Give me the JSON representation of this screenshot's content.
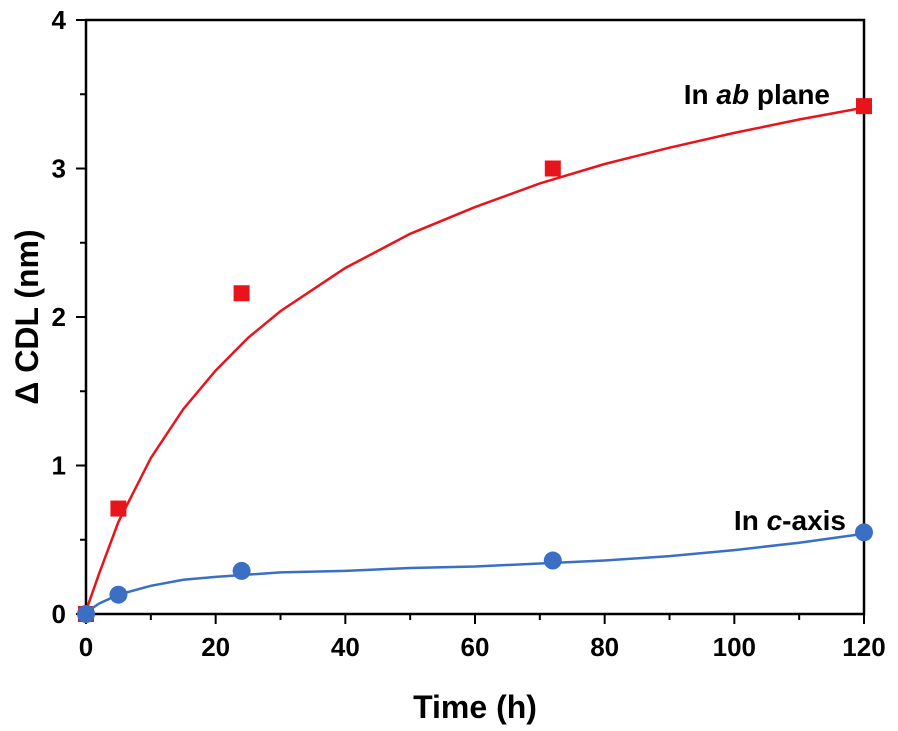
{
  "chart_data": {
    "type": "scatter",
    "xlabel": "Time (h)",
    "ylabel": "Δ CDL (nm)",
    "xlim": [
      0,
      120
    ],
    "ylim": [
      0,
      4
    ],
    "x_ticks": [
      "0",
      "20",
      "40",
      "60",
      "80",
      "100",
      "120"
    ],
    "y_ticks": [
      "0",
      "1",
      "2",
      "3",
      "4"
    ],
    "grid": false,
    "series": [
      {
        "name_prefix": "In ",
        "name_italic": "ab",
        "name_suffix": " plane",
        "marker": "square",
        "color": "#e8141c",
        "x": [
          0,
          5,
          24,
          72,
          120
        ],
        "y": [
          0.0,
          0.71,
          2.16,
          3.0,
          3.42
        ],
        "fit": [
          [
            0,
            0.02
          ],
          [
            2,
            0.27
          ],
          [
            5,
            0.62
          ],
          [
            10,
            1.05
          ],
          [
            15,
            1.38
          ],
          [
            20,
            1.64
          ],
          [
            25,
            1.86
          ],
          [
            30,
            2.04
          ],
          [
            40,
            2.33
          ],
          [
            50,
            2.56
          ],
          [
            60,
            2.74
          ],
          [
            70,
            2.9
          ],
          [
            80,
            3.03
          ],
          [
            90,
            3.14
          ],
          [
            100,
            3.24
          ],
          [
            110,
            3.33
          ],
          [
            120,
            3.41
          ]
        ]
      },
      {
        "name_prefix": "In ",
        "name_italic": "c",
        "name_suffix": "-axis",
        "marker": "circle",
        "color": "#3a6fc4",
        "x": [
          0,
          5,
          24,
          72,
          120
        ],
        "y": [
          0.0,
          0.13,
          0.29,
          0.36,
          0.55
        ],
        "fit": [
          [
            0,
            0.01
          ],
          [
            2,
            0.07
          ],
          [
            5,
            0.13
          ],
          [
            10,
            0.19
          ],
          [
            15,
            0.23
          ],
          [
            20,
            0.25
          ],
          [
            30,
            0.28
          ],
          [
            40,
            0.29
          ],
          [
            50,
            0.31
          ],
          [
            60,
            0.32
          ],
          [
            70,
            0.34
          ],
          [
            80,
            0.36
          ],
          [
            90,
            0.39
          ],
          [
            100,
            0.43
          ],
          [
            110,
            0.48
          ],
          [
            120,
            0.54
          ]
        ]
      }
    ]
  }
}
